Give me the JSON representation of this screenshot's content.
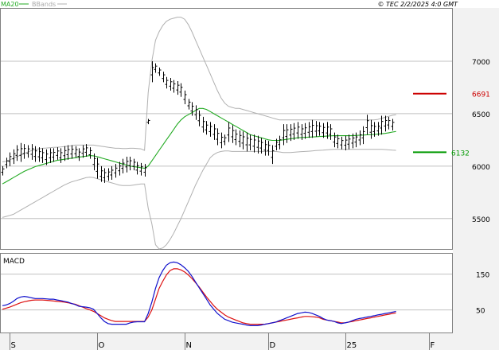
{
  "header": {
    "legend_ma": "MA20",
    "legend_bb": "BBands",
    "watermark": "© TEC 2/2/2025 4:0 GMT"
  },
  "colors": {
    "ma": "#22aa22",
    "bbands": "#b0b0b0",
    "ohlc": "#000000",
    "resistance": "#cc0000",
    "support": "#009900",
    "macd": "#1111cc",
    "signal": "#dd1111",
    "grid": "#c0c0c0",
    "panel_border": "#808080",
    "axis_bg": "#f2f2f2",
    "legend_muted": "#aaaaaa"
  },
  "levels": {
    "resistance_label": "6691",
    "resistance_value": 6691,
    "support_label": "6132",
    "support_value": 6132
  },
  "chart_data": [
    {
      "type": "ohlc",
      "title": "",
      "y_ticks": [
        "7000",
        "6500",
        "6000",
        "5500"
      ],
      "ylim": [
        5210,
        7500
      ],
      "y_ticks_values": [
        7000,
        6500,
        6000,
        5500
      ],
      "x_ticks": [
        "S",
        "O",
        "N",
        "D",
        "25",
        "F"
      ],
      "x_ticks_index": [
        2,
        26,
        50,
        73,
        94,
        117
      ],
      "grid": true,
      "ohlc_hl": [
        [
          5910,
          6000
        ],
        [
          5980,
          6080
        ],
        [
          6000,
          6130
        ],
        [
          6020,
          6160
        ],
        [
          6050,
          6200
        ],
        [
          6040,
          6220
        ],
        [
          6070,
          6210
        ],
        [
          6080,
          6200
        ],
        [
          6060,
          6210
        ],
        [
          6040,
          6190
        ],
        [
          6040,
          6180
        ],
        [
          6030,
          6170
        ],
        [
          6010,
          6160
        ],
        [
          6030,
          6170
        ],
        [
          6040,
          6170
        ],
        [
          6060,
          6180
        ],
        [
          6030,
          6170
        ],
        [
          6050,
          6190
        ],
        [
          6060,
          6200
        ],
        [
          6070,
          6200
        ],
        [
          6080,
          6190
        ],
        [
          6050,
          6170
        ],
        [
          6080,
          6200
        ],
        [
          6090,
          6210
        ],
        [
          6070,
          6180
        ],
        [
          5960,
          6120
        ],
        [
          5880,
          6080
        ],
        [
          5850,
          6000
        ],
        [
          5840,
          5980
        ],
        [
          5860,
          5980
        ],
        [
          5870,
          6000
        ],
        [
          5890,
          6020
        ],
        [
          5910,
          6040
        ],
        [
          5930,
          6070
        ],
        [
          5940,
          6090
        ],
        [
          5960,
          6090
        ],
        [
          5960,
          6070
        ],
        [
          5920,
          6040
        ],
        [
          5910,
          6030
        ],
        [
          5900,
          6020
        ],
        [
          6400,
          6450
        ],
        [
          6800,
          7000
        ],
        [
          6890,
          6980
        ],
        [
          6860,
          6940
        ],
        [
          6800,
          6900
        ],
        [
          6740,
          6850
        ],
        [
          6720,
          6840
        ],
        [
          6700,
          6820
        ],
        [
          6680,
          6810
        ],
        [
          6660,
          6790
        ],
        [
          6590,
          6720
        ],
        [
          6540,
          6640
        ],
        [
          6480,
          6610
        ],
        [
          6440,
          6580
        ],
        [
          6380,
          6530
        ],
        [
          6320,
          6470
        ],
        [
          6300,
          6430
        ],
        [
          6280,
          6420
        ],
        [
          6250,
          6400
        ],
        [
          6200,
          6360
        ],
        [
          6170,
          6320
        ],
        [
          6200,
          6300
        ],
        [
          6230,
          6420
        ],
        [
          6220,
          6390
        ],
        [
          6200,
          6350
        ],
        [
          6180,
          6340
        ],
        [
          6160,
          6330
        ],
        [
          6140,
          6320
        ],
        [
          6150,
          6300
        ],
        [
          6130,
          6300
        ],
        [
          6120,
          6290
        ],
        [
          6120,
          6270
        ],
        [
          6100,
          6250
        ],
        [
          6100,
          6240
        ],
        [
          6020,
          6200
        ],
        [
          6150,
          6260
        ],
        [
          6160,
          6290
        ],
        [
          6200,
          6400
        ],
        [
          6220,
          6400
        ],
        [
          6240,
          6400
        ],
        [
          6250,
          6410
        ],
        [
          6260,
          6420
        ],
        [
          6250,
          6400
        ],
        [
          6260,
          6410
        ],
        [
          6270,
          6420
        ],
        [
          6270,
          6440
        ],
        [
          6280,
          6430
        ],
        [
          6290,
          6420
        ],
        [
          6270,
          6410
        ],
        [
          6260,
          6420
        ],
        [
          6250,
          6400
        ],
        [
          6180,
          6320
        ],
        [
          6170,
          6300
        ],
        [
          6160,
          6280
        ],
        [
          6150,
          6290
        ],
        [
          6160,
          6300
        ],
        [
          6170,
          6310
        ],
        [
          6180,
          6320
        ],
        [
          6200,
          6340
        ],
        [
          6210,
          6380
        ],
        [
          6300,
          6490
        ],
        [
          6260,
          6440
        ],
        [
          6280,
          6420
        ],
        [
          6290,
          6420
        ],
        [
          6300,
          6480
        ],
        [
          6330,
          6480
        ],
        [
          6350,
          6470
        ],
        [
          6340,
          6450
        ]
      ],
      "series": [
        {
          "name": "MA20",
          "values": [
            5830,
            5850,
            5870,
            5890,
            5910,
            5930,
            5950,
            5965,
            5980,
            5995,
            6005,
            6015,
            6025,
            6035,
            6045,
            6055,
            6060,
            6065,
            6070,
            6075,
            6080,
            6085,
            6090,
            6095,
            6100,
            6098,
            6090,
            6080,
            6070,
            6060,
            6050,
            6040,
            6030,
            6020,
            6010,
            6000,
            5995,
            5990,
            5985,
            5980,
            6000,
            6050,
            6100,
            6150,
            6200,
            6250,
            6300,
            6350,
            6400,
            6440,
            6470,
            6490,
            6510,
            6530,
            6550,
            6550,
            6540,
            6520,
            6500,
            6480,
            6460,
            6440,
            6420,
            6400,
            6380,
            6360,
            6340,
            6320,
            6300,
            6290,
            6280,
            6270,
            6260,
            6250,
            6245,
            6245,
            6245,
            6250,
            6255,
            6260,
            6265,
            6270,
            6272,
            6274,
            6276,
            6278,
            6280,
            6282,
            6284,
            6286,
            6288,
            6290,
            6290,
            6290,
            6290,
            6290,
            6290,
            6292,
            6294,
            6296,
            6298,
            6300,
            6302,
            6305,
            6308,
            6312,
            6318,
            6325,
            6330
          ]
        },
        {
          "name": "BBands",
          "values": [
            5510,
            5520,
            5530,
            5540,
            5560,
            5580,
            5600,
            5620,
            5640,
            5660,
            5680,
            5700,
            5720,
            5740,
            5760,
            5780,
            5800,
            5820,
            5835,
            5850,
            5860,
            5870,
            5880,
            5890,
            5895,
            5890,
            5880,
            5870,
            5860,
            5850,
            5840,
            5830,
            5820,
            5815,
            5815,
            5815,
            5820,
            5825,
            5830,
            5830,
            5600,
            5450,
            5250,
            5210,
            5220,
            5250,
            5300,
            5360,
            5430,
            5500,
            5580,
            5660,
            5740,
            5820,
            5890,
            5960,
            6020,
            6080,
            6110,
            6130,
            6140,
            6145,
            6145,
            6140,
            6140,
            6140,
            6140,
            6140,
            6140,
            6140,
            6140,
            6140,
            6140,
            6140,
            6140,
            6140,
            6135,
            6130,
            6130,
            6130,
            6132,
            6135,
            6138,
            6140,
            6142,
            6145,
            6148,
            6150,
            6152,
            6155,
            6158,
            6160,
            6160,
            6160,
            6160,
            6160,
            6160,
            6160,
            6160,
            6160,
            6160,
            6160,
            6160,
            6160,
            6160,
            6158,
            6155,
            6152,
            6150
          ]
        },
        {
          "name": "BBands",
          "values": [
            6040,
            6045,
            6060,
            6075,
            6090,
            6105,
            6120,
            6135,
            6148,
            6158,
            6165,
            6170,
            6172,
            6175,
            6178,
            6180,
            6182,
            6186,
            6190,
            6195,
            6200,
            6200,
            6200,
            6200,
            6200,
            6200,
            6195,
            6190,
            6185,
            6180,
            6175,
            6170,
            6170,
            6168,
            6168,
            6170,
            6170,
            6168,
            6165,
            6150,
            6700,
            7000,
            7200,
            7280,
            7340,
            7380,
            7400,
            7410,
            7420,
            7420,
            7400,
            7350,
            7280,
            7200,
            7120,
            7040,
            6960,
            6880,
            6800,
            6720,
            6650,
            6600,
            6570,
            6560,
            6550,
            6550,
            6540,
            6530,
            6520,
            6510,
            6500,
            6490,
            6480,
            6470,
            6460,
            6450,
            6440,
            6440,
            6440,
            6440,
            6440,
            6440,
            6440,
            6440,
            6440,
            6440,
            6440,
            6440,
            6440,
            6440,
            6440,
            6440,
            6440,
            6440,
            6440,
            6440,
            6440,
            6440,
            6440,
            6440,
            6440,
            6440,
            6440,
            6445,
            6455,
            6465,
            6475,
            6485,
            6490
          ]
        }
      ]
    },
    {
      "type": "line",
      "title": "MACD",
      "y_ticks": [
        "150",
        "50"
      ],
      "ylim": [
        -13,
        207
      ],
      "y_ticks_values": [
        150,
        50
      ],
      "grid": true,
      "series": [
        {
          "name": "",
          "values": [
            62,
            64,
            68,
            74,
            82,
            86,
            88,
            86,
            84,
            82,
            82,
            82,
            81,
            80,
            80,
            78,
            76,
            74,
            72,
            68,
            65,
            60,
            59,
            58,
            56,
            52,
            40,
            28,
            18,
            12,
            10,
            10,
            10,
            10,
            10,
            14,
            16,
            17,
            17,
            17,
            40,
            72,
            110,
            140,
            160,
            175,
            182,
            184,
            182,
            176,
            168,
            158,
            144,
            128,
            112,
            96,
            80,
            64,
            52,
            40,
            32,
            24,
            20,
            16,
            14,
            12,
            10,
            8,
            6,
            6,
            6,
            8,
            10,
            12,
            14,
            16,
            20,
            24,
            28,
            32,
            36,
            40,
            42,
            44,
            43,
            40,
            36,
            32,
            26,
            22,
            20,
            18,
            14,
            12,
            14,
            16,
            20,
            24,
            26,
            28,
            30,
            32,
            34,
            36,
            38,
            40,
            42,
            44,
            46
          ]
        },
        {
          "name": "",
          "values": [
            52,
            55,
            58,
            62,
            66,
            70,
            73,
            75,
            77,
            78,
            78,
            78,
            77,
            76,
            75,
            74,
            73,
            72,
            70,
            68,
            66,
            62,
            58,
            54,
            50,
            46,
            40,
            34,
            28,
            24,
            20,
            18,
            18,
            18,
            18,
            18,
            18,
            18,
            18,
            18,
            30,
            50,
            80,
            110,
            130,
            148,
            160,
            165,
            165,
            162,
            156,
            148,
            138,
            126,
            114,
            100,
            86,
            74,
            62,
            52,
            44,
            36,
            30,
            26,
            22,
            18,
            14,
            12,
            10,
            10,
            10,
            10,
            10,
            12,
            14,
            16,
            18,
            20,
            22,
            24,
            26,
            28,
            30,
            32,
            32,
            31,
            30,
            28,
            24,
            22,
            20,
            18,
            16,
            14,
            14,
            16,
            18,
            20,
            22,
            24,
            26,
            28,
            30,
            32,
            34,
            36,
            38,
            40,
            42
          ]
        }
      ]
    }
  ]
}
